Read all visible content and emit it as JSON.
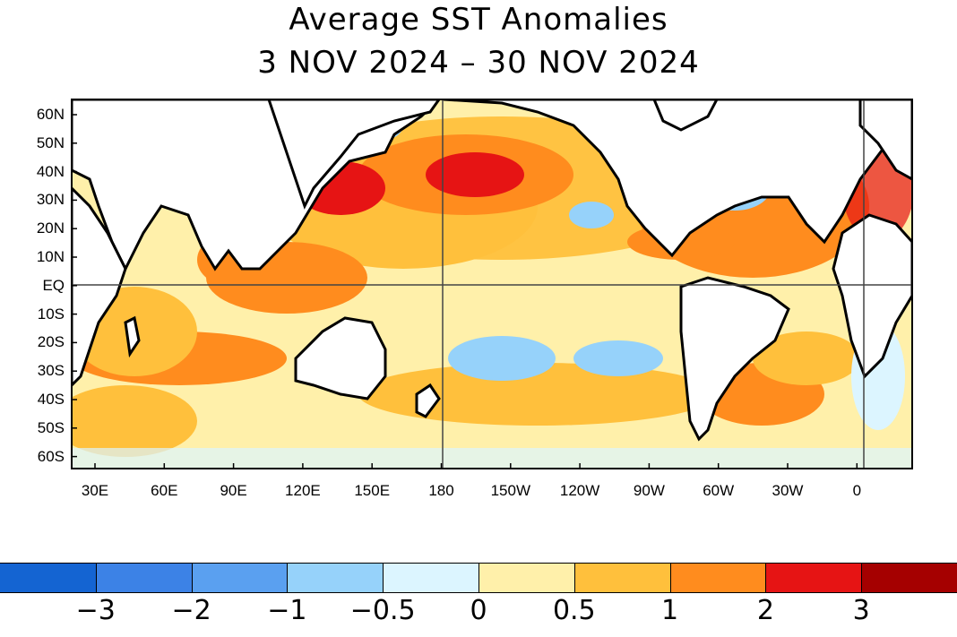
{
  "title": {
    "line1": "Average SST Anomalies",
    "line2": "3 NOV 2024 – 30 NOV 2024"
  },
  "map": {
    "lat_labels": [
      "60N",
      "50N",
      "40N",
      "30N",
      "20N",
      "10N",
      "EQ",
      "10S",
      "20S",
      "30S",
      "40S",
      "50S",
      "60S"
    ],
    "lon_labels": [
      "30E",
      "60E",
      "90E",
      "120E",
      "150E",
      "180",
      "150W",
      "120W",
      "90W",
      "60W",
      "30W",
      "0"
    ],
    "land_color": "#ffffff",
    "coast_color": "#000000"
  },
  "colorbar": {
    "colors": [
      "#1464d2",
      "#3c82e6",
      "#5aa0f0",
      "#96d2fa",
      "#dcf5ff",
      "#fff0aa",
      "#ffc03c",
      "#ff8c1e",
      "#e61414",
      "#a50000"
    ],
    "labels": [
      "−3",
      "−2",
      "−1",
      "−0.5",
      "0",
      "0.5",
      "1",
      "2",
      "3"
    ]
  }
}
